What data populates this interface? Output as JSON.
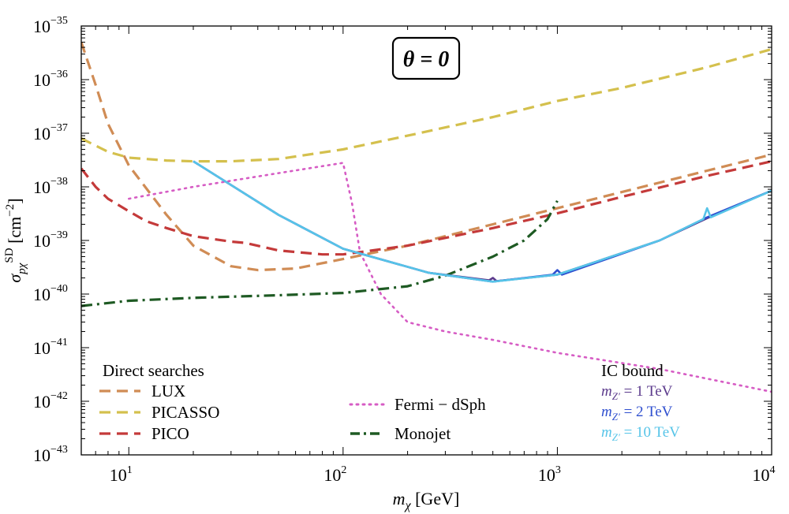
{
  "chart_data": {
    "type": "line",
    "title": "",
    "badge": "θ = 0",
    "xlabel": {
      "var": "m",
      "sub": "χ",
      "unit": "[GeV]"
    },
    "ylabel": {
      "var": "σ",
      "sub": "pχ",
      "sup": "SD",
      "unit": "[cm",
      "unit_sup": "−2",
      "unit_close": "]"
    },
    "xscale": "log",
    "yscale": "log",
    "xlim": [
      6,
      10000
    ],
    "ylim": [
      1e-43,
      1e-35
    ],
    "x_ticks": [
      {
        "value": 10,
        "base": "10",
        "exp": "1"
      },
      {
        "value": 100,
        "base": "10",
        "exp": "2"
      },
      {
        "value": 1000,
        "base": "10",
        "exp": "3"
      },
      {
        "value": 10000,
        "base": "10",
        "exp": "4"
      }
    ],
    "y_ticks": [
      {
        "value": 1e-35,
        "base": "10",
        "exp": "−35"
      },
      {
        "value": 1e-36,
        "base": "10",
        "exp": "−36"
      },
      {
        "value": 1e-37,
        "base": "10",
        "exp": "−37"
      },
      {
        "value": 1e-38,
        "base": "10",
        "exp": "−38"
      },
      {
        "value": 1e-39,
        "base": "10",
        "exp": "−39"
      },
      {
        "value": 1e-40,
        "base": "10",
        "exp": "−40"
      },
      {
        "value": 1e-41,
        "base": "10",
        "exp": "−41"
      },
      {
        "value": 1e-42,
        "base": "10",
        "exp": "−42"
      },
      {
        "value": 1e-43,
        "base": "10",
        "exp": "−43"
      }
    ],
    "series": [
      {
        "name": "LUX",
        "color": "#d08c55",
        "style": "dashed",
        "x": [
          6,
          7,
          8,
          10,
          15,
          20,
          30,
          40,
          60,
          100,
          200,
          500,
          1000,
          5000,
          10000
        ],
        "y": [
          5e-36,
          8e-37,
          1.5e-37,
          2.5e-38,
          3e-39,
          8e-40,
          3.3e-40,
          2.8e-40,
          3e-40,
          4.5e-40,
          8e-40,
          2e-39,
          4e-39,
          2e-38,
          4e-38
        ]
      },
      {
        "name": "PICASSO",
        "color": "#d4c04d",
        "style": "dashed",
        "x": [
          6,
          8,
          10,
          15,
          20,
          30,
          50,
          100,
          200,
          500,
          1000,
          2000,
          5000,
          10000
        ],
        "y": [
          8e-38,
          4.5e-38,
          3.5e-38,
          3.1e-38,
          3e-38,
          3e-38,
          3.3e-38,
          5e-38,
          9e-38,
          2e-37,
          4e-37,
          7e-37,
          1.7e-36,
          3.7e-36
        ]
      },
      {
        "name": "PICO",
        "color": "#c43a3a",
        "style": "dashed",
        "x": [
          6,
          7,
          8,
          10,
          12,
          15,
          20,
          30,
          35,
          50,
          80,
          100,
          200,
          500,
          1000,
          2000,
          5000,
          10000
        ],
        "y": [
          2.2e-38,
          1e-38,
          6e-39,
          3.5e-39,
          2.3e-39,
          1.7e-39,
          1.2e-39,
          9.5e-40,
          9e-40,
          6.5e-40,
          5.5e-40,
          5.5e-40,
          8e-40,
          1.7e-39,
          3.2e-39,
          6.5e-39,
          1.6e-38,
          3e-38
        ]
      },
      {
        "name": "Fermi − dSph",
        "color": "#d65cc4",
        "style": "dotted",
        "x": [
          10,
          20,
          50,
          100,
          110,
          120,
          150,
          200,
          300,
          500,
          1000,
          3000,
          10000
        ],
        "y": [
          6e-39,
          1e-38,
          1.8e-38,
          2.8e-38,
          5e-39,
          6e-40,
          1e-40,
          3e-41,
          2e-41,
          1.4e-41,
          8e-42,
          4e-42,
          1.5e-42
        ]
      },
      {
        "name": "Monojet",
        "color": "#1e5a23",
        "style": "dashdot",
        "x": [
          6,
          10,
          20,
          50,
          100,
          200,
          300,
          500,
          700,
          900,
          1000
        ],
        "y": [
          6e-41,
          7.5e-41,
          8.5e-41,
          9.5e-41,
          1.05e-40,
          1.4e-40,
          2.2e-40,
          5e-40,
          1e-39,
          2.5e-39,
          5.5e-39
        ]
      },
      {
        "name": "m_Z' = 1 TeV",
        "color": "#5b3a8c",
        "style": "solid",
        "x": [
          20,
          50,
          100,
          250,
          480,
          500,
          520,
          1000,
          3000,
          5000,
          10000
        ],
        "y": [
          3e-38,
          3e-39,
          7e-40,
          2.5e-40,
          1.8e-40,
          2e-40,
          1.75e-40,
          2.3e-40,
          1e-39,
          2.6e-39,
          8.5e-39
        ]
      },
      {
        "name": "m_Z' = 2 TeV",
        "color": "#2f4fcf",
        "style": "solid",
        "x": [
          20,
          50,
          100,
          250,
          500,
          950,
          1000,
          1050,
          3000,
          5000,
          10000
        ],
        "y": [
          3e-38,
          3e-39,
          7e-40,
          2.5e-40,
          1.7e-40,
          2.3e-40,
          2.8e-40,
          2.3e-40,
          1e-39,
          2.7e-39,
          8.5e-39
        ]
      },
      {
        "name": "m_Z' = 10 TeV",
        "color": "#56c4e8",
        "style": "solid",
        "x": [
          20,
          50,
          100,
          250,
          500,
          1000,
          3000,
          4800,
          5000,
          5200,
          10000
        ],
        "y": [
          3e-38,
          3e-39,
          7e-40,
          2.5e-40,
          1.7e-40,
          2.3e-40,
          1e-39,
          2.5e-39,
          4e-39,
          2.7e-39,
          8.5e-39
        ]
      }
    ],
    "legend_left": {
      "title": "Direct searches",
      "entries": [
        {
          "label": "LUX",
          "series": 0
        },
        {
          "label": "PICASSO",
          "series": 1
        },
        {
          "label": "PICO",
          "series": 2
        }
      ]
    },
    "legend_mid": {
      "entries": [
        {
          "label": "Fermi − dSph",
          "series": 3
        },
        {
          "label": "Monojet",
          "series": 4
        }
      ]
    },
    "legend_ic": {
      "title": "IC bound",
      "entries": [
        {
          "var": "m",
          "sub": "Z′",
          "value": " = 1 TeV",
          "series": 5
        },
        {
          "var": "m",
          "sub": "Z′",
          "value": " = 2 TeV",
          "series": 6
        },
        {
          "var": "m",
          "sub": "Z′",
          "value": " = 10 TeV",
          "series": 7
        }
      ]
    }
  }
}
